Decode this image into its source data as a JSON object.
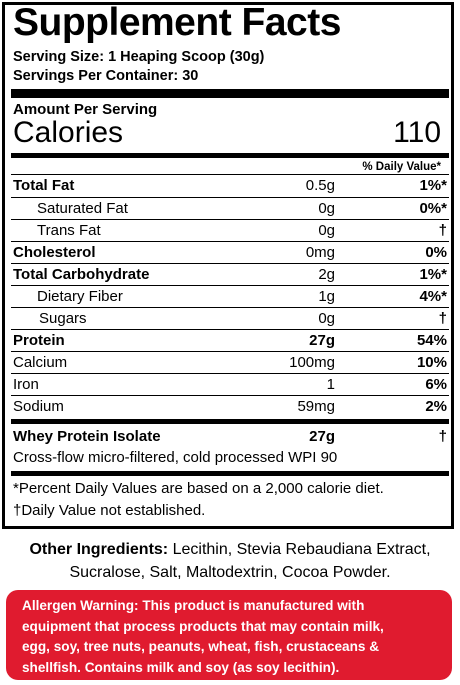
{
  "panel": {
    "title": "Supplement Facts",
    "serving_size": "Serving Size: 1 Heaping Scoop (30g)",
    "servings_per_container": "Servings Per Container: 30",
    "amount_per_serving": "Amount Per Serving",
    "calories_label": "Calories",
    "calories_value": "110",
    "daily_value_header": "% Daily Value*",
    "rows": [
      {
        "name": "Total Fat",
        "amount": "0.5g",
        "dv": "1%*"
      },
      {
        "name": "Saturated Fat",
        "amount": "0g",
        "dv": "0%*"
      },
      {
        "name": "Trans Fat",
        "amount": "0g",
        "dv": "†"
      },
      {
        "name": "Cholesterol",
        "amount": "0mg",
        "dv": "0%"
      },
      {
        "name": "Total Carbohydrate",
        "amount": "2g",
        "dv": "1%*"
      },
      {
        "name": "Dietary Fiber",
        "amount": "1g",
        "dv": "4%*"
      },
      {
        "name": "Sugars",
        "amount": "0g",
        "dv": "†"
      },
      {
        "name": "Protein",
        "amount": "27g",
        "dv": "54%"
      },
      {
        "name": "Calcium",
        "amount": "100mg",
        "dv": "10%"
      },
      {
        "name": "Iron",
        "amount": "1",
        "dv": "6%"
      },
      {
        "name": "Sodium",
        "amount": "59mg",
        "dv": "2%"
      }
    ],
    "whey": {
      "name": "Whey Protein Isolate",
      "amount": "27g",
      "dv": "†"
    },
    "whey_note": "Cross-flow micro-filtered, cold processed WPI 90",
    "footnote_1": "*Percent Daily Values are based on a 2,000 calorie diet.",
    "footnote_2": "†Daily Value not established."
  },
  "ingredients": {
    "label": "Other Ingredients:",
    "line_1": "Lecithin, Stevia Rebaudiana Extract,",
    "line_2": "Sucralose, Salt, Maltodextrin, Cocoa Powder."
  },
  "allergen": {
    "line_1": "Allergen Warning: This product is manufactured with",
    "line_2": "equipment that process products that may contain milk,",
    "line_3": "egg, soy, tree nuts, peanuts, wheat, fish, crustaceans &",
    "line_4": "shellfish. Contains milk and soy (as soy lecithin)."
  },
  "colors": {
    "warning_background": "#e01b2f",
    "warning_text": "#ffffff"
  }
}
